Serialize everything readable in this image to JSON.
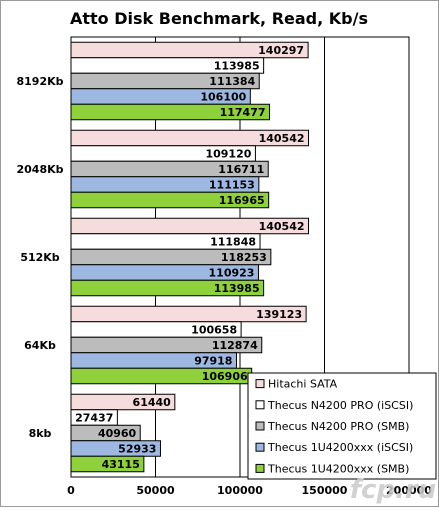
{
  "chart_data": {
    "type": "bar",
    "orientation": "horizontal",
    "title": "Atto Disk Benchmark, Read, Kb/s",
    "categories": [
      "8192Kb",
      "2048Kb",
      "512Kb",
      "64Kb",
      "8kb"
    ],
    "series": [
      {
        "name": "Hitachi SATA",
        "color": "#f6dcdc",
        "values": [
          140297,
          140542,
          140542,
          139123,
          61440
        ]
      },
      {
        "name": "Thecus N4200 PRO (iSCSI)",
        "color": "#ffffff",
        "values": [
          113985,
          109120,
          111848,
          100658,
          27437
        ]
      },
      {
        "name": "Thecus N4200 PRO (SMB)",
        "color": "#bcbcbc",
        "values": [
          111384,
          116711,
          118253,
          112874,
          40960
        ]
      },
      {
        "name": "Thecus 1U4200xxx (iSCSI)",
        "color": "#9db9e1",
        "values": [
          106100,
          111153,
          110923,
          97918,
          52933
        ]
      },
      {
        "name": "Thecus 1U4200xxx (SMB)",
        "color": "#8fd13a",
        "values": [
          117477,
          116965,
          113985,
          106906,
          43115
        ]
      }
    ],
    "x_ticks": [
      "0",
      "50000",
      "100000",
      "150000",
      "200000"
    ],
    "xlim": [
      0,
      200000
    ],
    "grid": true,
    "legend_position": "bottom-right",
    "watermark": "fcp.ru"
  }
}
